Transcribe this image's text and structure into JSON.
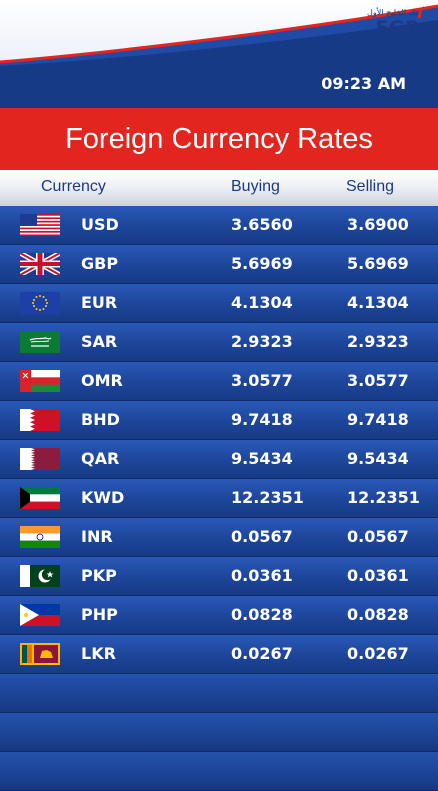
{
  "brand": {
    "name": "FGB",
    "arabic": "بنك الخليج الأول"
  },
  "time": "09:23 AM",
  "title": "Foreign Currency Rates",
  "columns": {
    "currency": "Currency",
    "buying": "Buying",
    "selling": "Selling"
  },
  "rates": [
    {
      "flag": "us-flag-icon",
      "code": "USD",
      "buying": "3.6560",
      "selling": "3.6900"
    },
    {
      "flag": "uk-flag-icon",
      "code": "GBP",
      "buying": "5.6969",
      "selling": "5.6969"
    },
    {
      "flag": "eu-flag-icon",
      "code": "EUR",
      "buying": "4.1304",
      "selling": "4.1304"
    },
    {
      "flag": "saudi-flag-icon",
      "code": "SAR",
      "buying": "2.9323",
      "selling": "2.9323"
    },
    {
      "flag": "oman-flag-icon",
      "code": "OMR",
      "buying": "3.0577",
      "selling": "3.0577"
    },
    {
      "flag": "bahrain-flag-icon",
      "code": "BHD",
      "buying": "9.7418",
      "selling": "9.7418"
    },
    {
      "flag": "qatar-flag-icon",
      "code": "QAR",
      "buying": "9.5434",
      "selling": "9.5434"
    },
    {
      "flag": "kuwait-flag-icon",
      "code": "KWD",
      "buying": "12.2351",
      "selling": "12.2351"
    },
    {
      "flag": "india-flag-icon",
      "code": "INR",
      "buying": "0.0567",
      "selling": "0.0567"
    },
    {
      "flag": "pakistan-flag-icon",
      "code": "PKP",
      "buying": "0.0361",
      "selling": "0.0361"
    },
    {
      "flag": "philippines-flag-icon",
      "code": "PHP",
      "buying": "0.0828",
      "selling": "0.0828"
    },
    {
      "flag": "srilanka-flag-icon",
      "code": "LKR",
      "buying": "0.0267",
      "selling": "0.0267"
    }
  ],
  "colors": {
    "accent_red": "#e3251f",
    "brand_blue": "#1b3a85",
    "row_blue": "#1d4599"
  }
}
